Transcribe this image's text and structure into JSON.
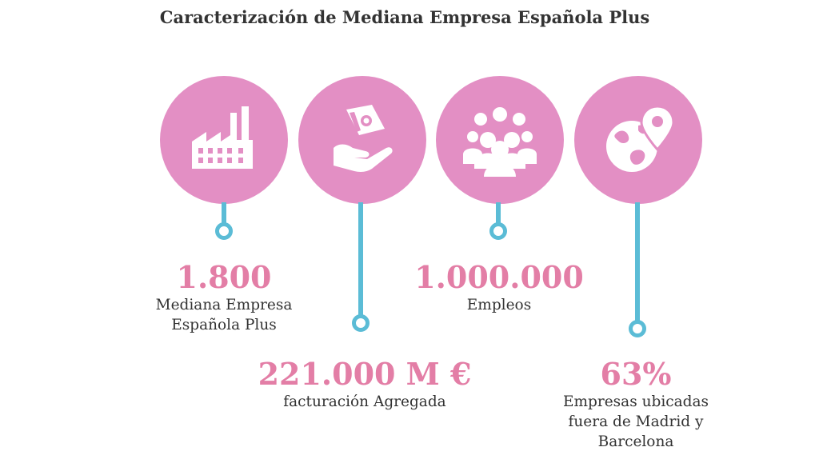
{
  "title": "Caracterización de Mediana Empresa Española Plus",
  "colors": {
    "circle": "#e38fc4",
    "connector": "#5bbcd6",
    "value_text": "#e37ea6",
    "label_text": "#333333"
  },
  "items": [
    {
      "icon": "factory-icon",
      "value": "1.800",
      "label": "Mediana Empresa\nEspañola Plus"
    },
    {
      "icon": "hand-money-icon",
      "value": "221.000 M €",
      "label": "facturación Agregada"
    },
    {
      "icon": "people-group-icon",
      "value": "1.000.000",
      "label": "Empleos"
    },
    {
      "icon": "globe-location-icon",
      "value": "63%",
      "label": "Empresas ubicadas\nfuera de Madrid y\nBarcelona"
    }
  ]
}
